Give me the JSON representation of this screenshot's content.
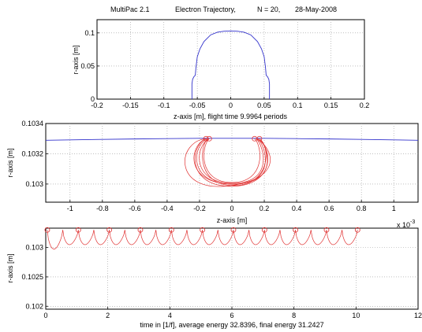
{
  "header": {
    "app": "MultiPac 2.1",
    "subject": "Electron Trajectory,",
    "particles": "N = 20,",
    "date": "28-May-2008"
  },
  "chart_data": [
    {
      "type": "line",
      "id": "cavity-geometry",
      "xlabel": "z-axis [m],  flight time 9.9964 periods",
      "ylabel": "r-axis [m]",
      "xlim": [
        -0.2,
        0.2
      ],
      "ylim": [
        0,
        0.12
      ],
      "xticks": [
        -0.2,
        -0.15,
        -0.1,
        -0.05,
        0,
        0.05,
        0.1,
        0.15,
        0.2
      ],
      "xtick_labels": [
        "-0.2",
        "-0.15",
        "-0.1",
        "-0.05",
        "0",
        "0.05",
        "0.1",
        "0.15",
        "0.2"
      ],
      "yticks": [
        0,
        0.05,
        0.1
      ],
      "ytick_labels": [
        "0",
        "0.05",
        "0.1"
      ],
      "grid": true,
      "series": [
        {
          "color": "#3333cc",
          "x": [
            -0.058,
            -0.058,
            -0.057,
            -0.055,
            -0.053,
            -0.052,
            -0.05,
            -0.046,
            -0.04,
            -0.03,
            -0.02,
            -0.01,
            0,
            0.01,
            0.02,
            0.03,
            0.04,
            0.046,
            0.05,
            0.052,
            0.053,
            0.055,
            0.057,
            0.058,
            0.058
          ],
          "y": [
            0,
            0.023,
            0.03,
            0.034,
            0.036,
            0.048,
            0.064,
            0.076,
            0.087,
            0.097,
            0.101,
            0.1025,
            0.103,
            0.1025,
            0.101,
            0.097,
            0.087,
            0.076,
            0.064,
            0.048,
            0.036,
            0.034,
            0.03,
            0.023,
            0
          ]
        }
      ]
    },
    {
      "type": "line",
      "id": "trajectory-zoom",
      "xlabel": "z-axis [m]",
      "ylabel": "r-axis [m]",
      "xlim": [
        -1.15,
        1.15
      ],
      "ylim": [
        0.10288,
        0.1034
      ],
      "xticks": [
        -1,
        -0.8,
        -0.6,
        -0.4,
        -0.2,
        0,
        0.2,
        0.4,
        0.6,
        0.8,
        1
      ],
      "xtick_labels": [
        "-1",
        "-0.8",
        "-0.6",
        "-0.4",
        "-0.2",
        "0",
        "0.2",
        "0.4",
        "0.6",
        "0.8",
        "1"
      ],
      "x_multiplier": "x 10",
      "x_exponent": "-3",
      "yticks": [
        0.103,
        0.1032,
        0.1034
      ],
      "ytick_labels": [
        "0.103",
        "0.1032",
        "0.1034"
      ],
      "grid": true,
      "series": [
        {
          "color": "#3333cc",
          "x": [
            -1.15,
            -1.0,
            -0.8,
            -0.6,
            -0.4,
            -0.2,
            0,
            0.2,
            0.4,
            0.6,
            0.8,
            1.0,
            1.15
          ],
          "y": [
            0.103289,
            0.103292,
            0.103295,
            0.103298,
            0.1033,
            0.103302,
            0.103302,
            0.103302,
            0.1033,
            0.103298,
            0.103295,
            0.103292,
            0.103289
          ]
        }
      ],
      "trajectory_color": "#e03030",
      "impact_points": [
        {
          "x": -0.16,
          "y": 0.1033
        },
        {
          "x": -0.14,
          "y": 0.1033
        },
        {
          "x": 0.14,
          "y": 0.1033
        },
        {
          "x": 0.17,
          "y": 0.1033
        }
      ]
    },
    {
      "type": "line",
      "id": "trajectory-time",
      "xlabel": "time in [1/f], average energy 32.8396, final energy 31.2427",
      "ylabel": "r-axis [m]",
      "xlim": [
        0,
        12
      ],
      "ylim": [
        0.10195,
        0.10333
      ],
      "xticks": [
        0,
        2,
        4,
        6,
        8,
        10,
        12
      ],
      "xtick_labels": [
        "0",
        "2",
        "4",
        "6",
        "8",
        "10",
        "12"
      ],
      "yticks": [
        0.102,
        0.1025,
        0.103
      ],
      "ytick_labels": [
        "0.102",
        "0.1025",
        "0.103"
      ],
      "grid": true,
      "trajectory_color": "#e03030",
      "period": 0.5,
      "impacts_start": 0.05,
      "impacts_end": 10.05,
      "r_top": 0.1033,
      "r_first_dip": 0.10291,
      "r_dip": 0.103
    }
  ]
}
